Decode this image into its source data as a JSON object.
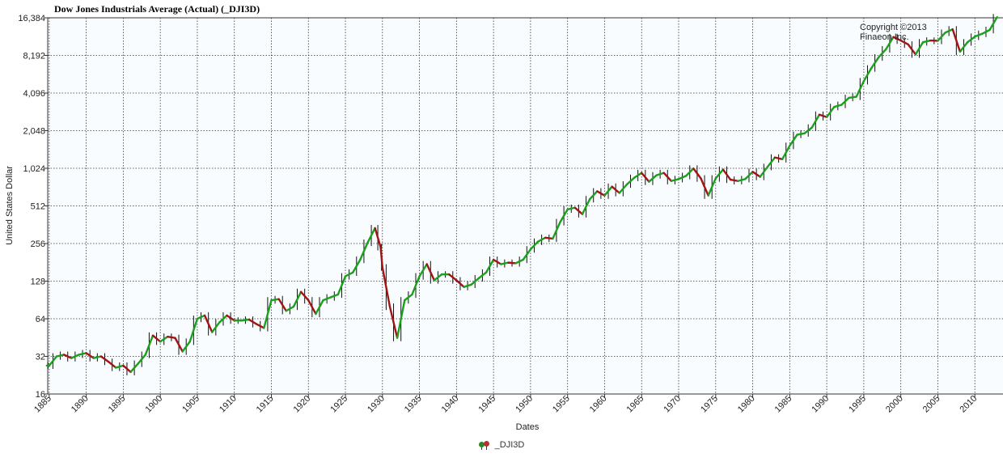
{
  "chart_data": {
    "type": "line",
    "style": "ohlc-bars",
    "title": "Dow Jones Industrials Average (Actual) (_DJI3D)",
    "xlabel": "Dates",
    "ylabel": "United States Dollar",
    "yscale": "log2",
    "ylim": [
      16,
      16384
    ],
    "xlim": [
      1884.8,
      2013.8
    ],
    "y_ticks": [
      16,
      32,
      64,
      128,
      256,
      512,
      1024,
      2048,
      4096,
      8192,
      16384
    ],
    "y_tick_labels": [
      "16",
      "32",
      "64",
      "128",
      "256",
      "512",
      "1,024",
      "2,048",
      "4,096",
      "8,192",
      "16,384"
    ],
    "x_ticks": [
      1885,
      1890,
      1895,
      1900,
      1905,
      1910,
      1915,
      1920,
      1925,
      1930,
      1935,
      1940,
      1945,
      1950,
      1955,
      1960,
      1965,
      1970,
      1975,
      1980,
      1985,
      1990,
      1995,
      2000,
      2005,
      2010
    ],
    "grid": true,
    "legend_position": "bottom",
    "colors": {
      "up": "#1aa01a",
      "down": "#a01414",
      "wick": "#111111",
      "grid": "#333333",
      "plot_bg": "#f8fcff"
    },
    "series": [
      {
        "name": "_DJI3D",
        "x": [
          1885,
          1886,
          1887,
          1888,
          1889,
          1890,
          1891,
          1892,
          1893,
          1894,
          1895,
          1896,
          1897,
          1898,
          1899,
          1900,
          1901,
          1902,
          1903,
          1904,
          1905,
          1906,
          1907,
          1908,
          1909,
          1910,
          1911,
          1912,
          1913,
          1914,
          1915,
          1916,
          1917,
          1918,
          1919,
          1920,
          1921,
          1922,
          1923,
          1924,
          1925,
          1926,
          1927,
          1928,
          1929,
          1929.75,
          1930,
          1931,
          1932,
          1933,
          1934,
          1935,
          1936,
          1937,
          1938,
          1939,
          1940,
          1941,
          1942,
          1943,
          1944,
          1945,
          1946,
          1947,
          1948,
          1949,
          1950,
          1951,
          1952,
          1953,
          1954,
          1955,
          1956,
          1957,
          1958,
          1959,
          1960,
          1961,
          1962,
          1963,
          1964,
          1965,
          1966,
          1967,
          1968,
          1969,
          1970,
          1971,
          1972,
          1973,
          1974,
          1975,
          1976,
          1977,
          1978,
          1979,
          1980,
          1981,
          1982,
          1983,
          1984,
          1985,
          1986,
          1987,
          1988,
          1989,
          1990,
          1991,
          1992,
          1993,
          1994,
          1995,
          1996,
          1997,
          1998,
          1999,
          2000,
          2001,
          2002,
          2003,
          2004,
          2005,
          2006,
          2007,
          2008,
          2009,
          2010,
          2011,
          2012,
          2013
        ],
        "values": [
          27,
          32,
          33,
          31,
          33,
          34,
          31,
          32,
          29,
          26,
          27,
          24,
          28,
          33,
          47,
          42,
          46,
          45,
          35,
          42,
          64,
          68,
          50,
          60,
          68,
          62,
          62,
          63,
          58,
          54,
          90,
          92,
          74,
          80,
          105,
          90,
          70,
          90,
          95,
          100,
          140,
          150,
          190,
          260,
          340,
          240,
          165,
          80,
          45,
          90,
          100,
          140,
          175,
          130,
          145,
          145,
          130,
          115,
          120,
          135,
          150,
          190,
          175,
          180,
          178,
          190,
          230,
          265,
          285,
          280,
          380,
          480,
          495,
          440,
          580,
          670,
          620,
          730,
          650,
          760,
          860,
          940,
          800,
          900,
          940,
          810,
          840,
          890,
          1020,
          850,
          620,
          850,
          1000,
          830,
          810,
          840,
          960,
          875,
          1050,
          1250,
          1210,
          1550,
          1900,
          1950,
          2170,
          2750,
          2630,
          3170,
          3300,
          3750,
          3830,
          5100,
          6450,
          7900,
          9180,
          11500,
          10780,
          10020,
          8340,
          10450,
          10780,
          10720,
          12460,
          13260,
          8780,
          10430,
          11580,
          12220,
          13100,
          16580
        ]
      }
    ]
  },
  "copyright": "Copyright ©2013\nFinaeon Inc."
}
